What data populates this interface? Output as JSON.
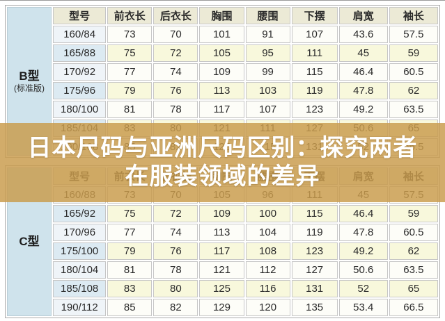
{
  "overlay": {
    "line1": "日本尺码与亚洲尺码区别：探究两者",
    "line2": "在服装领域的差异"
  },
  "colors": {
    "overlay_background": "#c99c4d",
    "overlay_text": "#ffffff",
    "label_column_blue": "#cfe3ec",
    "model_header_blue": "#cfe7ee",
    "header_cream": "#ecead6",
    "row_white": "#fdfdf8",
    "row_yellow": "#f8f8dc",
    "model_light_blue": "#eff4f8",
    "model_blue": "#dceaf2",
    "grid_border": "#c6c6c6",
    "text": "#2a2a2a"
  },
  "chart_data": {
    "type": "table",
    "title": "日本尺码与亚洲尺码区别：探究两者在服装领域的差异",
    "columns": [
      "型号",
      "前衣长",
      "后衣长",
      "胸围",
      "腰围",
      "下摆",
      "肩宽",
      "袖长"
    ],
    "sections": [
      {
        "group": "B型",
        "group_note": "(标准版)",
        "rows": [
          [
            "160/84",
            "73",
            "70",
            "101",
            "91",
            "107",
            "43.6",
            "57.5"
          ],
          [
            "165/88",
            "75",
            "72",
            "105",
            "95",
            "111",
            "45",
            "59"
          ],
          [
            "170/92",
            "77",
            "74",
            "109",
            "99",
            "115",
            "46.4",
            "60.5"
          ],
          [
            "175/96",
            "79",
            "76",
            "113",
            "103",
            "119",
            "47.8",
            "62"
          ],
          [
            "180/100",
            "81",
            "78",
            "117",
            "107",
            "123",
            "49.2",
            "63.5"
          ],
          [
            "185/104",
            "83",
            "80",
            "121",
            "111",
            "127",
            "50.6",
            "65"
          ],
          [
            "190/108",
            "85",
            "82",
            "125",
            "115",
            "131",
            "52",
            "66.5"
          ]
        ]
      },
      {
        "group": "C型",
        "group_note": "",
        "rows": [
          [
            "160/88",
            "73",
            "70",
            "105",
            "96",
            "111",
            "45",
            "57.5"
          ],
          [
            "165/92",
            "75",
            "72",
            "109",
            "100",
            "115",
            "46.4",
            "59"
          ],
          [
            "170/96",
            "77",
            "74",
            "113",
            "104",
            "119",
            "47.8",
            "60.5"
          ],
          [
            "175/100",
            "79",
            "76",
            "117",
            "108",
            "123",
            "49.2",
            "62"
          ],
          [
            "180/104",
            "81",
            "78",
            "121",
            "112",
            "127",
            "50.6",
            "63.5"
          ],
          [
            "185/108",
            "83",
            "80",
            "125",
            "116",
            "131",
            "52",
            "65"
          ],
          [
            "190/112",
            "85",
            "82",
            "129",
            "120",
            "135",
            "53.4",
            "66.5"
          ]
        ]
      }
    ]
  }
}
